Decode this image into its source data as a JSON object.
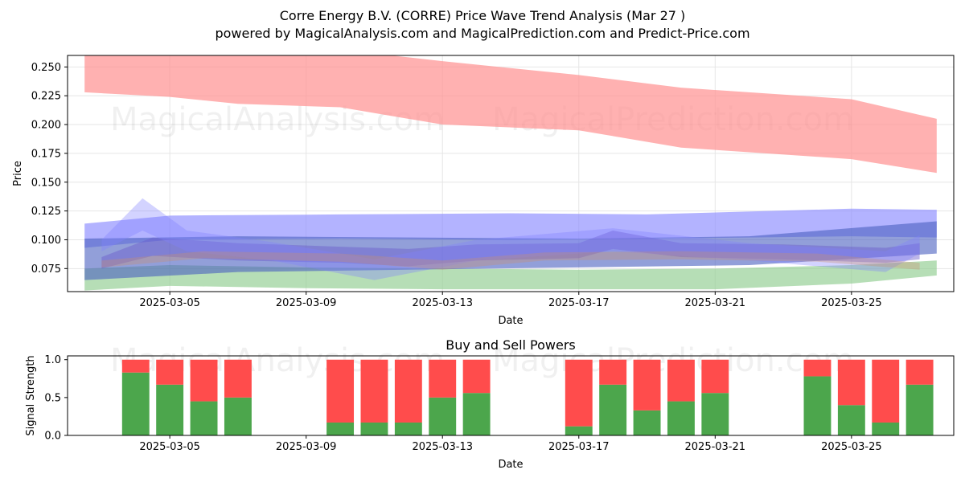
{
  "header": {
    "title": "Corre Energy B.V. (CORRE) Price Wave Trend Analysis (Mar 27 )",
    "subtitle": "powered by MagicalAnalysis.com and MagicalPrediction.com and Predict-Price.com"
  },
  "watermarks": [
    "MagicalAnalysis.com",
    "MagicalPrediction.com"
  ],
  "chart_data": [
    {
      "type": "area",
      "title": "",
      "xlabel": "Date",
      "ylabel": "Price",
      "ylim": [
        0.055,
        0.26
      ],
      "xlim": [
        "2025-03-02",
        "2025-03-28"
      ],
      "grid": true,
      "x_ticks": [
        "2025-03-05",
        "2025-03-09",
        "2025-03-13",
        "2025-03-17",
        "2025-03-21",
        "2025-03-25"
      ],
      "y_ticks": [
        "0.075",
        "0.100",
        "0.125",
        "0.150",
        "0.175",
        "0.200",
        "0.225",
        "0.250"
      ],
      "bands": [
        {
          "color": "#ff9090",
          "opacity": 0.7,
          "x": [
            "2025-03-02.5",
            "2025-03-05",
            "2025-03-07",
            "2025-03-10",
            "2025-03-13",
            "2025-03-17",
            "2025-03-20",
            "2025-03-25",
            "2025-03-27.5"
          ],
          "lower": [
            0.228,
            0.224,
            0.218,
            0.215,
            0.2,
            0.195,
            0.18,
            0.17,
            0.158
          ],
          "upper": [
            0.265,
            0.265,
            0.265,
            0.265,
            0.255,
            0.243,
            0.232,
            0.222,
            0.205
          ]
        },
        {
          "color": "#8a8aff",
          "opacity": 0.65,
          "x": [
            "2025-03-02.5",
            "2025-03-05",
            "2025-03-10",
            "2025-03-15",
            "2025-03-19",
            "2025-03-25",
            "2025-03-27.5"
          ],
          "lower": [
            0.093,
            0.1,
            0.101,
            0.1,
            0.101,
            0.103,
            0.102
          ],
          "upper": [
            0.114,
            0.121,
            0.122,
            0.123,
            0.122,
            0.127,
            0.126
          ]
        },
        {
          "color": "#8fcc8f",
          "opacity": 0.65,
          "x": [
            "2025-03-02.5",
            "2025-03-05",
            "2025-03-09",
            "2025-03-13",
            "2025-03-17",
            "2025-03-21",
            "2025-03-25",
            "2025-03-27.5"
          ],
          "lower": [
            0.056,
            0.06,
            0.058,
            0.057,
            0.057,
            0.057,
            0.062,
            0.069
          ],
          "upper": [
            0.075,
            0.078,
            0.076,
            0.075,
            0.074,
            0.075,
            0.078,
            0.082
          ]
        },
        {
          "color": "#4a5fc0",
          "opacity": 0.6,
          "x": [
            "2025-03-02.5",
            "2025-03-07",
            "2025-03-12",
            "2025-03-17",
            "2025-03-22",
            "2025-03-27.5"
          ],
          "lower": [
            0.065,
            0.072,
            0.074,
            0.076,
            0.078,
            0.088
          ],
          "upper": [
            0.101,
            0.103,
            0.102,
            0.101,
            0.103,
            0.116
          ]
        },
        {
          "color": "#6a5acd",
          "opacity": 0.45,
          "x": [
            "2025-03-03",
            "2025-03-04.5",
            "2025-03-07",
            "2025-03-10",
            "2025-03-12",
            "2025-03-14",
            "2025-03-17",
            "2025-03-18",
            "2025-03-20",
            "2025-03-23",
            "2025-03-26",
            "2025-03-27"
          ],
          "lower": [
            0.075,
            0.086,
            0.082,
            0.08,
            0.077,
            0.082,
            0.084,
            0.092,
            0.085,
            0.083,
            0.08,
            0.083
          ],
          "upper": [
            0.085,
            0.102,
            0.097,
            0.094,
            0.092,
            0.096,
            0.097,
            0.108,
            0.097,
            0.096,
            0.093,
            0.097
          ]
        },
        {
          "color": "#8080ff",
          "opacity": 0.35,
          "x": [
            "2025-03-03",
            "2025-03-04.2",
            "2025-03-05.5",
            "2025-03-08",
            "2025-03-11",
            "2025-03-14",
            "2025-03-18",
            "2025-03-22",
            "2025-03-26",
            "2025-03-27"
          ],
          "lower": [
            0.09,
            0.108,
            0.09,
            0.082,
            0.065,
            0.082,
            0.09,
            0.082,
            0.072,
            0.088
          ],
          "upper": [
            0.1,
            0.136,
            0.108,
            0.098,
            0.083,
            0.1,
            0.11,
            0.097,
            0.09,
            0.104
          ]
        },
        {
          "color": "#c89070",
          "opacity": 0.35,
          "x": [
            "2025-03-03",
            "2025-03-06",
            "2025-03-10",
            "2025-03-13",
            "2025-03-16",
            "2025-03-20",
            "2025-03-24",
            "2025-03-27"
          ],
          "lower": [
            0.076,
            0.084,
            0.081,
            0.074,
            0.082,
            0.083,
            0.081,
            0.074
          ],
          "upper": [
            0.082,
            0.09,
            0.088,
            0.082,
            0.089,
            0.09,
            0.088,
            0.08
          ]
        }
      ]
    },
    {
      "type": "bar",
      "title": "Buy and Sell Powers",
      "xlabel": "Date",
      "ylabel": "Signal Strength",
      "ylim": [
        0,
        1.05
      ],
      "xlim": [
        "2025-03-02",
        "2025-03-28"
      ],
      "x_ticks": [
        "2025-03-05",
        "2025-03-09",
        "2025-03-13",
        "2025-03-17",
        "2025-03-21",
        "2025-03-25"
      ],
      "y_ticks": [
        "0.0",
        "0.5",
        "1.0"
      ],
      "buy_color": "#4ca64c",
      "sell_color": "#ff4c4c",
      "categories": [
        "2025-03-04",
        "2025-03-05",
        "2025-03-06",
        "2025-03-07",
        "2025-03-10",
        "2025-03-11",
        "2025-03-12",
        "2025-03-13",
        "2025-03-14",
        "2025-03-17",
        "2025-03-18",
        "2025-03-19",
        "2025-03-20",
        "2025-03-21",
        "2025-03-24",
        "2025-03-25",
        "2025-03-26",
        "2025-03-27"
      ],
      "series": [
        {
          "name": "Buy",
          "values": [
            0.83,
            0.67,
            0.45,
            0.5,
            0.17,
            0.17,
            0.17,
            0.5,
            0.56,
            0.12,
            0.67,
            0.33,
            0.45,
            0.56,
            0.78,
            0.4,
            0.17,
            0.67
          ]
        },
        {
          "name": "Sell",
          "values": [
            0.17,
            0.33,
            0.55,
            0.5,
            0.83,
            0.83,
            0.83,
            0.5,
            0.44,
            0.88,
            0.33,
            0.67,
            0.55,
            0.44,
            0.22,
            0.6,
            0.83,
            0.33
          ]
        }
      ]
    }
  ]
}
